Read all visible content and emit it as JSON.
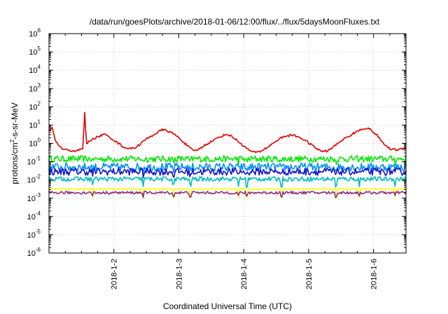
{
  "chart_data": {
    "type": "line",
    "title": "/data/run/goesPlots/archive/2018-01-06/12:00/flux/../flux/5daysMoonFluxes.txt",
    "xlabel": "Coordinated Universal Time (UTC)",
    "ylabel_main": "protons/cm",
    "ylabel_sup": "2",
    "ylabel_rest": "-s-sr-MeV",
    "y_scale": "log",
    "ylim_exponents": [
      -6,
      6
    ],
    "y_ticks": [
      {
        "base": "10",
        "exp": "-6"
      },
      {
        "base": "10",
        "exp": "-5"
      },
      {
        "base": "10",
        "exp": "-4"
      },
      {
        "base": "10",
        "exp": "-3"
      },
      {
        "base": "10",
        "exp": "-2"
      },
      {
        "base": "10",
        "exp": "-1"
      },
      {
        "base": "10",
        "exp": "0"
      },
      {
        "base": "10",
        "exp": "1"
      },
      {
        "base": "10",
        "exp": "2"
      },
      {
        "base": "10",
        "exp": "3"
      },
      {
        "base": "10",
        "exp": "4"
      },
      {
        "base": "10",
        "exp": "5"
      },
      {
        "base": "10",
        "exp": "6"
      }
    ],
    "xlim_days": [
      1.0,
      6.5
    ],
    "x_ticks": [
      {
        "day": 2,
        "label": "2018-1-2"
      },
      {
        "day": 3,
        "label": "2018-1-3"
      },
      {
        "day": 4,
        "label": "2018-1-4"
      },
      {
        "day": 5,
        "label": "2018-1-5"
      },
      {
        "day": 6,
        "label": "2018-1-6"
      }
    ],
    "grid": true,
    "series": [
      {
        "color": "#e00000",
        "kind": "red",
        "log_anchors": [
          [
            1.0,
            0.7
          ],
          [
            1.05,
            0.85
          ],
          [
            1.1,
            0.1
          ],
          [
            1.2,
            -0.3
          ],
          [
            1.3,
            -0.4
          ],
          [
            1.45,
            -0.4
          ],
          [
            1.5,
            -0.3
          ],
          [
            1.53,
            -0.35
          ],
          [
            1.54,
            1.7
          ],
          [
            1.56,
            1.7
          ],
          [
            1.57,
            -0.05
          ],
          [
            1.65,
            0.2
          ],
          [
            1.75,
            0.35
          ],
          [
            1.85,
            0.5
          ],
          [
            1.95,
            0.3
          ],
          [
            2.05,
            0.05
          ],
          [
            2.15,
            -0.2
          ],
          [
            2.25,
            -0.3
          ],
          [
            2.35,
            -0.2
          ],
          [
            2.45,
            0.1
          ],
          [
            2.55,
            0.35
          ],
          [
            2.65,
            0.55
          ],
          [
            2.75,
            0.75
          ],
          [
            2.85,
            0.65
          ],
          [
            2.95,
            0.45
          ],
          [
            3.05,
            0.15
          ],
          [
            3.15,
            -0.2
          ],
          [
            3.22,
            -0.4
          ],
          [
            3.3,
            -0.35
          ],
          [
            3.4,
            -0.1
          ],
          [
            3.5,
            0.1
          ],
          [
            3.6,
            0.3
          ],
          [
            3.7,
            0.45
          ],
          [
            3.75,
            0.5
          ],
          [
            3.85,
            0.3
          ],
          [
            3.95,
            0.0
          ],
          [
            4.05,
            -0.3
          ],
          [
            4.15,
            -0.5
          ],
          [
            4.25,
            -0.45
          ],
          [
            4.35,
            -0.25
          ],
          [
            4.45,
            0.0
          ],
          [
            4.55,
            0.25
          ],
          [
            4.65,
            0.4
          ],
          [
            4.75,
            0.45
          ],
          [
            4.85,
            0.35
          ],
          [
            4.95,
            0.15
          ],
          [
            5.05,
            -0.1
          ],
          [
            5.15,
            -0.35
          ],
          [
            5.22,
            -0.45
          ],
          [
            5.3,
            -0.4
          ],
          [
            5.4,
            -0.15
          ],
          [
            5.5,
            0.15
          ],
          [
            5.6,
            0.35
          ],
          [
            5.7,
            0.55
          ],
          [
            5.8,
            0.75
          ],
          [
            5.9,
            0.85
          ],
          [
            5.95,
            0.75
          ],
          [
            6.05,
            0.45
          ],
          [
            6.15,
            0.0
          ],
          [
            6.25,
            -0.3
          ],
          [
            6.35,
            -0.35
          ],
          [
            6.45,
            -0.3
          ],
          [
            6.5,
            -0.25
          ]
        ],
        "noise": 0.12
      },
      {
        "color": "#00e800",
        "kind": "band",
        "base_log": -0.85,
        "noise": 0.35,
        "dip_depth": 0.15
      },
      {
        "color": "#0090ff",
        "kind": "band",
        "base_log": -1.3,
        "noise": 0.45,
        "dip_depth": 0.15
      },
      {
        "color": "#1414c8",
        "kind": "band",
        "base_log": -1.55,
        "noise": 0.4,
        "dip_depth": 0.15
      },
      {
        "color": "#00bcbc",
        "kind": "band",
        "base_log": -1.95,
        "noise": 0.25,
        "dip_depth": 0.35
      },
      {
        "color": "#ffff00",
        "kind": "band",
        "base_log": -2.5,
        "noise": 0.05,
        "dip_depth": 0.45
      },
      {
        "color": "#8c2a78",
        "kind": "band",
        "base_log": -2.7,
        "noise": 0.15,
        "dip_depth": 0.2
      }
    ]
  }
}
